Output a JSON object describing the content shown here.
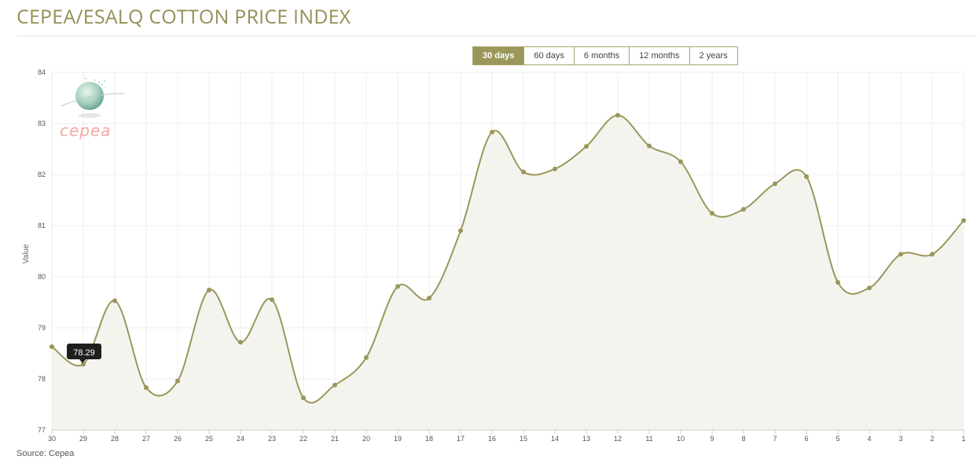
{
  "page": {
    "title": "CEPEA/ESALQ COTTON PRICE INDEX",
    "source": "Source: Cepea"
  },
  "range_tabs": [
    {
      "label": "30 days",
      "active": true
    },
    {
      "label": "60 days",
      "active": false
    },
    {
      "label": "6 months",
      "active": false
    },
    {
      "label": "12 months",
      "active": false
    },
    {
      "label": "2 years",
      "active": false
    }
  ],
  "logo": {
    "text": "cepea"
  },
  "tooltip": {
    "value": "78.29"
  },
  "colors": {
    "line": "#9b975a",
    "fill": "#f4f4ef",
    "accent": "#9b975a",
    "grid": "#ededed"
  },
  "chart_data": {
    "type": "area",
    "ylabel": "Value",
    "xlabel": "",
    "ylim": [
      77,
      84
    ],
    "yticks": [
      77,
      78,
      79,
      80,
      81,
      82,
      83,
      84
    ],
    "categories": [
      "30",
      "29",
      "28",
      "27",
      "26",
      "25",
      "24",
      "23",
      "22",
      "21",
      "20",
      "19",
      "18",
      "17",
      "16",
      "15",
      "14",
      "13",
      "12",
      "11",
      "10",
      "9",
      "8",
      "7",
      "6",
      "5",
      "4",
      "3",
      "2",
      "1"
    ],
    "values": [
      78.63,
      78.29,
      79.53,
      77.83,
      77.96,
      79.74,
      78.72,
      79.55,
      77.63,
      77.88,
      78.42,
      79.81,
      79.58,
      80.9,
      82.83,
      82.05,
      82.11,
      82.55,
      83.16,
      82.56,
      82.25,
      81.24,
      81.32,
      81.82,
      81.96,
      79.89,
      79.78,
      80.44,
      80.44,
      81.1
    ],
    "grid": true,
    "legend": "none"
  }
}
